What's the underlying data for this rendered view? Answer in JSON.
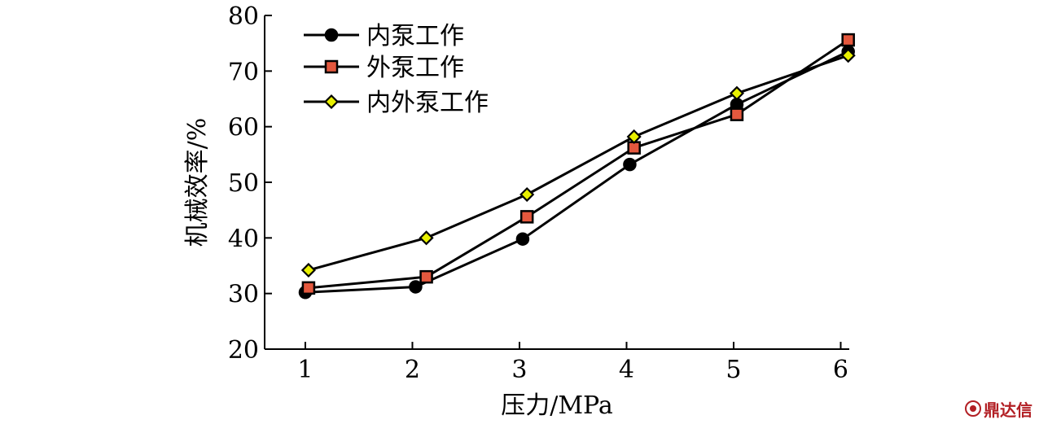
{
  "chart_data": {
    "type": "line",
    "title": "",
    "xlabel": "压力/MPa",
    "ylabel": "机械效率/%",
    "x": [
      1,
      2,
      3,
      4,
      5,
      6
    ],
    "xlim": [
      0.62,
      6.08
    ],
    "ylim": [
      20,
      80
    ],
    "xticks": [
      1,
      2,
      3,
      4,
      5,
      6
    ],
    "yticks": [
      20,
      30,
      40,
      50,
      60,
      70,
      80
    ],
    "grid": false,
    "legend": "top-left",
    "series": [
      {
        "name": "内泵工作",
        "marker": "circle",
        "color": "#000000",
        "points": [
          [
            1.0,
            30.2
          ],
          [
            2.03,
            31.2
          ],
          [
            3.03,
            39.8
          ],
          [
            4.03,
            53.2
          ],
          [
            5.03,
            64.0
          ],
          [
            6.07,
            73.5
          ]
        ]
      },
      {
        "name": "外泵工作",
        "marker": "square",
        "color": "#e4583e",
        "points": [
          [
            1.03,
            31.0
          ],
          [
            2.13,
            33.0
          ],
          [
            3.07,
            43.8
          ],
          [
            4.07,
            56.2
          ],
          [
            5.03,
            62.2
          ],
          [
            6.07,
            75.6
          ]
        ]
      },
      {
        "name": "内外泵工作",
        "marker": "diamond",
        "color": "#e8f000",
        "points": [
          [
            1.03,
            34.2
          ],
          [
            2.13,
            40.0
          ],
          [
            3.07,
            47.8
          ],
          [
            4.07,
            58.2
          ],
          [
            5.03,
            66.0
          ],
          [
            6.07,
            72.8
          ]
        ]
      }
    ]
  },
  "watermark": {
    "text": "鼎达信",
    "color": "#b21f24",
    "icon": "logo-circle-icon"
  }
}
